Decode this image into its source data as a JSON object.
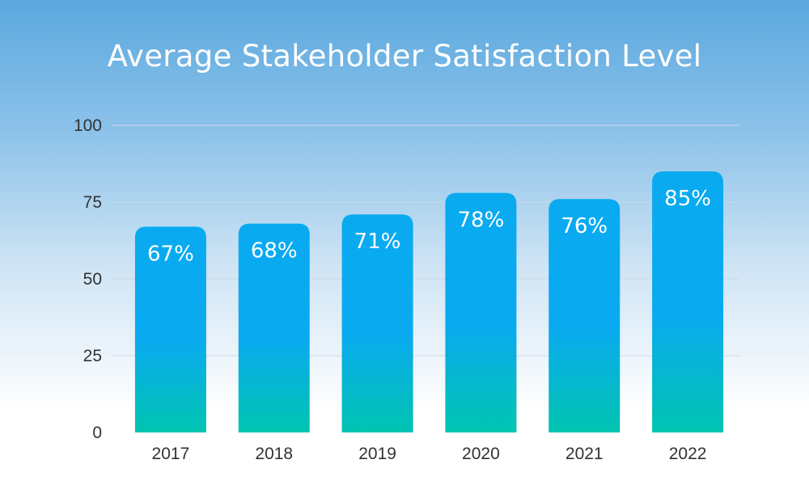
{
  "chart_data": {
    "type": "bar",
    "title": "Average Stakeholder Satisfaction Level",
    "categories": [
      "2017",
      "2018",
      "2019",
      "2020",
      "2021",
      "2022"
    ],
    "values": [
      67,
      68,
      71,
      78,
      76,
      85
    ],
    "data_labels": [
      "67%",
      "68%",
      "71%",
      "78%",
      "76%",
      "85%"
    ],
    "ylim": [
      0,
      100
    ],
    "yticks": [
      0,
      25,
      50,
      75,
      100
    ],
    "grid": true,
    "legend": "none",
    "colors": {
      "bar_top": "#0aaaf0",
      "bar_bottom": "#00c4b0",
      "grid": "#c9d9e6",
      "text": "#333333",
      "title": "#ffffff"
    }
  }
}
